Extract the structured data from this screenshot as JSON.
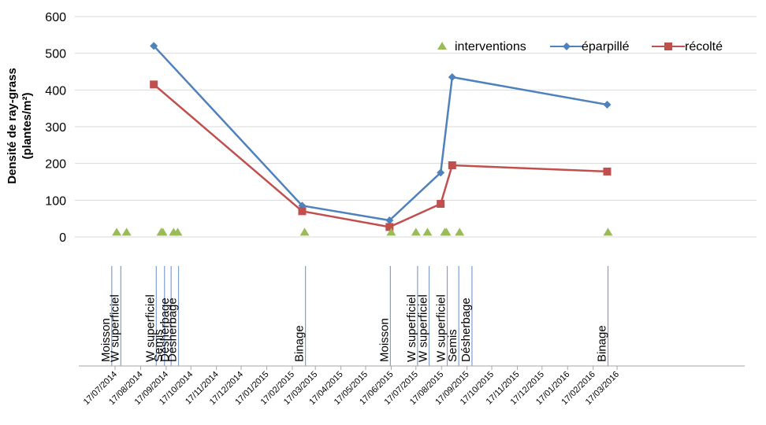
{
  "chart_data": {
    "type": "line",
    "ylabel_line1": "Densité de ray-grass",
    "ylabel_line2": "(plantes/m²)",
    "ylim": [
      0,
      600
    ],
    "y_ticks": [
      "0",
      "100",
      "200",
      "300",
      "400",
      "500",
      "600"
    ],
    "x_ticks": [
      "17/07/2014",
      "17/08/2014",
      "17/09/2014",
      "17/10/2014",
      "17/11/2014",
      "17/12/2014",
      "17/01/2015",
      "17/02/2015",
      "17/03/2015",
      "17/04/2015",
      "17/05/2015",
      "17/06/2015",
      "17/07/2015",
      "17/08/2015",
      "17/09/2015",
      "17/10/2015",
      "17/11/2015",
      "17/12/2015",
      "17/01/2016",
      "17/02/2016",
      "17/03/2016"
    ],
    "legend_position": "top-right",
    "series": [
      {
        "name": "éparpillé",
        "color": "#4f81bd",
        "marker": "diamond",
        "points": [
          {
            "x": "2014-09-02",
            "y": 520
          },
          {
            "x": "2015-03-01",
            "y": 85
          },
          {
            "x": "2015-06-15",
            "y": 45
          },
          {
            "x": "2015-08-16",
            "y": 175
          },
          {
            "x": "2015-08-30",
            "y": 435
          },
          {
            "x": "2016-03-05",
            "y": 360
          }
        ]
      },
      {
        "name": "récolté",
        "color": "#c0504d",
        "marker": "square",
        "points": [
          {
            "x": "2014-09-02",
            "y": 415
          },
          {
            "x": "2015-03-01",
            "y": 70
          },
          {
            "x": "2015-06-15",
            "y": 27
          },
          {
            "x": "2015-08-16",
            "y": 90
          },
          {
            "x": "2015-08-30",
            "y": 195
          },
          {
            "x": "2016-03-05",
            "y": 178
          }
        ]
      },
      {
        "name": "interventions",
        "color": "#9bbb59",
        "marker": "triangle",
        "points": [
          {
            "x": "2014-07-19",
            "y": 10
          },
          {
            "x": "2014-07-31",
            "y": 10
          },
          {
            "x": "2014-09-11",
            "y": 10
          },
          {
            "x": "2014-09-13",
            "y": 10
          },
          {
            "x": "2014-09-26",
            "y": 10
          },
          {
            "x": "2014-10-01",
            "y": 10
          },
          {
            "x": "2015-03-04",
            "y": 10
          },
          {
            "x": "2015-06-17",
            "y": 10
          },
          {
            "x": "2015-07-17",
            "y": 10
          },
          {
            "x": "2015-07-31",
            "y": 10
          },
          {
            "x": "2015-08-21",
            "y": 10
          },
          {
            "x": "2015-08-23",
            "y": 10
          },
          {
            "x": "2015-09-08",
            "y": 10
          },
          {
            "x": "2016-03-06",
            "y": 10
          }
        ]
      }
    ],
    "intervention_labels": [
      {
        "x": "2014-07-13",
        "label": "Moisson"
      },
      {
        "x": "2014-07-24",
        "label": "W superficiel"
      },
      {
        "x": "2014-09-05",
        "label": "W superficiel"
      },
      {
        "x": "2014-09-15",
        "label": "Semis"
      },
      {
        "x": "2014-09-23",
        "label": "Désherbage"
      },
      {
        "x": "2014-10-02",
        "label": "Désherbage"
      },
      {
        "x": "2015-03-05",
        "label": "Binage"
      },
      {
        "x": "2015-06-16",
        "label": "Moisson"
      },
      {
        "x": "2015-07-19",
        "label": "W superficiel"
      },
      {
        "x": "2015-08-02",
        "label": "W superficiel"
      },
      {
        "x": "2015-08-24",
        "label": "W superficiel"
      },
      {
        "x": "2015-09-07",
        "label": "Semis"
      },
      {
        "x": "2015-09-23",
        "label": "Désherbage"
      },
      {
        "x": "2016-03-06",
        "label": "Binage"
      }
    ]
  }
}
